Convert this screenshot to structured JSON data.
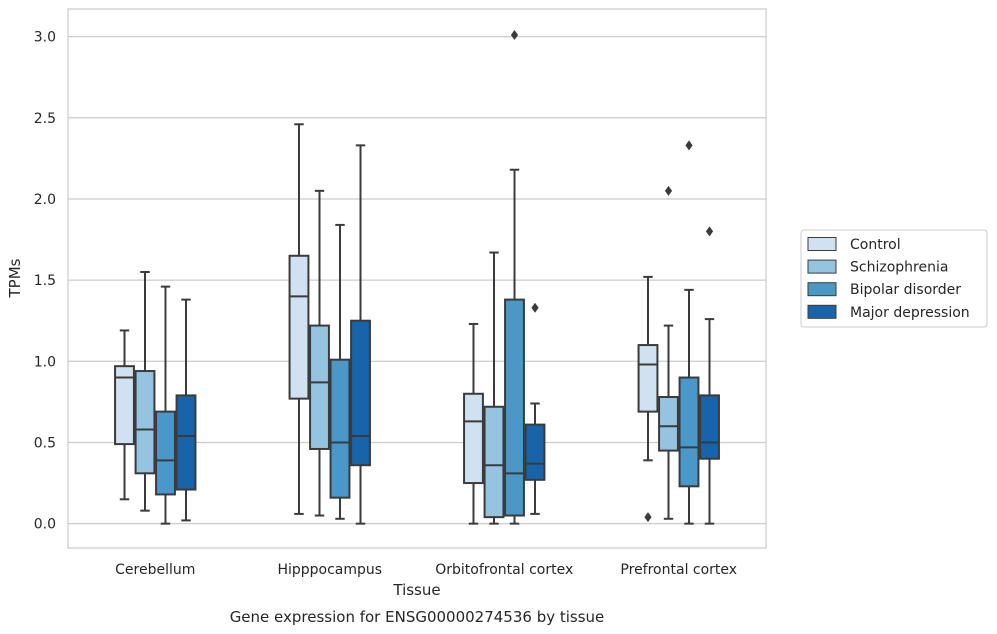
{
  "chart_data": {
    "type": "box",
    "xlabel": "Tissue",
    "ylabel": "TPMs",
    "caption": "Gene expression for ENSG00000274536 by tissue",
    "ylim": [
      -0.15,
      3.17
    ],
    "yticks": [
      "0.0",
      "0.5",
      "1.0",
      "1.5",
      "2.0",
      "2.5",
      "3.0"
    ],
    "grid": "horizontal",
    "legend_placement": "right",
    "categories": [
      "Cerebellum",
      "Hipppocampus",
      "Orbitofrontal cortex",
      "Prefrontal cortex"
    ],
    "series": [
      {
        "name": "Control",
        "color": "#d0e1f2",
        "boxes": [
          {
            "whislo": 0.15,
            "q1": 0.49,
            "med": 0.9,
            "q3": 0.97,
            "whishi": 1.19,
            "fliers": []
          },
          {
            "whislo": 0.06,
            "q1": 0.77,
            "med": 1.4,
            "q3": 1.65,
            "whishi": 2.46,
            "fliers": []
          },
          {
            "whislo": 0.0,
            "q1": 0.25,
            "med": 0.63,
            "q3": 0.8,
            "whishi": 1.23,
            "fliers": []
          },
          {
            "whislo": 0.39,
            "q1": 0.69,
            "med": 0.98,
            "q3": 1.1,
            "whishi": 1.52,
            "fliers": [
              0.04
            ]
          }
        ]
      },
      {
        "name": "Schizophrenia",
        "color": "#94c4df",
        "boxes": [
          {
            "whislo": 0.08,
            "q1": 0.31,
            "med": 0.58,
            "q3": 0.94,
            "whishi": 1.55,
            "fliers": []
          },
          {
            "whislo": 0.05,
            "q1": 0.46,
            "med": 0.87,
            "q3": 1.22,
            "whishi": 2.05,
            "fliers": []
          },
          {
            "whislo": 0.0,
            "q1": 0.04,
            "med": 0.36,
            "q3": 0.72,
            "whishi": 1.67,
            "fliers": []
          },
          {
            "whislo": 0.03,
            "q1": 0.45,
            "med": 0.6,
            "q3": 0.78,
            "whishi": 1.22,
            "fliers": [
              2.05
            ]
          }
        ]
      },
      {
        "name": "Bipolar disorder",
        "color": "#4a98c9",
        "boxes": [
          {
            "whislo": 0.0,
            "q1": 0.18,
            "med": 0.39,
            "q3": 0.69,
            "whishi": 1.46,
            "fliers": []
          },
          {
            "whislo": 0.03,
            "q1": 0.16,
            "med": 0.5,
            "q3": 1.01,
            "whishi": 1.84,
            "fliers": []
          },
          {
            "whislo": 0.0,
            "q1": 0.05,
            "med": 0.31,
            "q3": 1.38,
            "whishi": 2.18,
            "fliers": [
              3.01
            ]
          },
          {
            "whislo": 0.0,
            "q1": 0.23,
            "med": 0.47,
            "q3": 0.9,
            "whishi": 1.44,
            "fliers": [
              2.33
            ]
          }
        ]
      },
      {
        "name": "Major depression",
        "color": "#1764ab",
        "boxes": [
          {
            "whislo": 0.02,
            "q1": 0.21,
            "med": 0.54,
            "q3": 0.79,
            "whishi": 1.38,
            "fliers": []
          },
          {
            "whislo": 0.0,
            "q1": 0.36,
            "med": 0.54,
            "q3": 1.25,
            "whishi": 2.33,
            "fliers": []
          },
          {
            "whislo": 0.06,
            "q1": 0.27,
            "med": 0.37,
            "q3": 0.61,
            "whishi": 0.74,
            "fliers": [
              1.33
            ]
          },
          {
            "whislo": 0.0,
            "q1": 0.4,
            "med": 0.5,
            "q3": 0.79,
            "whishi": 1.26,
            "fliers": [
              1.8
            ]
          }
        ]
      }
    ]
  }
}
